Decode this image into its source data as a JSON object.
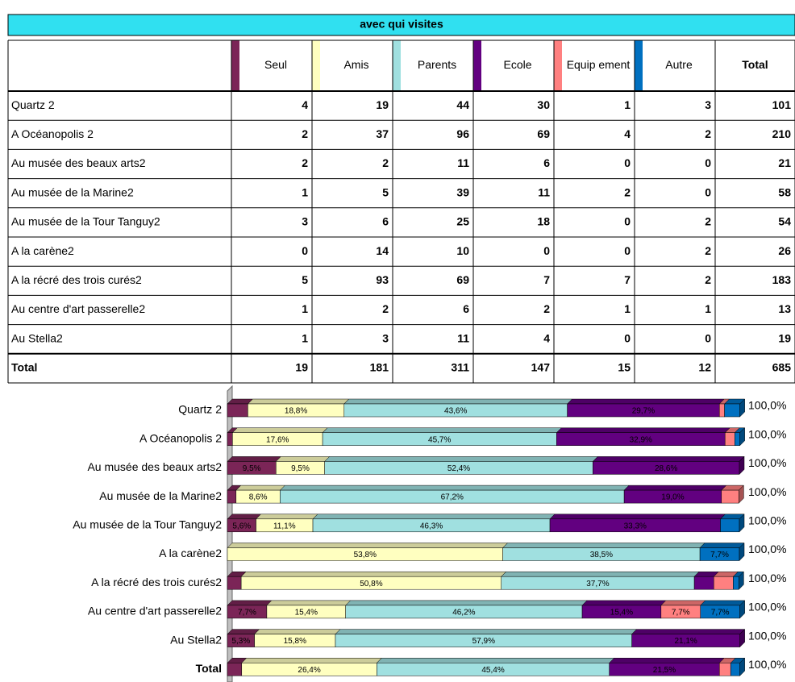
{
  "table": {
    "title": "avec qui visites",
    "columns": [
      "Seul",
      "Amis",
      "Parents",
      "Ecole",
      "Equip ement",
      "Autre",
      "Total"
    ],
    "colors": [
      "#7b2557",
      "#ffffc0",
      "#a0e0e0",
      "#620080",
      "#ff8080",
      "#0070c0"
    ],
    "rows": [
      {
        "label": "Quartz 2",
        "values": [
          4,
          19,
          44,
          30,
          1,
          3,
          101
        ]
      },
      {
        "label": "A Océanopolis 2",
        "values": [
          2,
          37,
          96,
          69,
          4,
          2,
          210
        ]
      },
      {
        "label": "Au musée des beaux arts2",
        "values": [
          2,
          2,
          11,
          6,
          0,
          0,
          21
        ]
      },
      {
        "label": "Au musée de la Marine2",
        "values": [
          1,
          5,
          39,
          11,
          2,
          0,
          58
        ]
      },
      {
        "label": "Au musée de la Tour Tanguy2",
        "values": [
          3,
          6,
          25,
          18,
          0,
          2,
          54
        ]
      },
      {
        "label": "A la carène2",
        "values": [
          0,
          14,
          10,
          0,
          0,
          2,
          26
        ]
      },
      {
        "label": "A la récré des trois curés2",
        "values": [
          5,
          93,
          69,
          7,
          7,
          2,
          183
        ]
      },
      {
        "label": "Au centre d'art passerelle2",
        "values": [
          1,
          2,
          6,
          2,
          1,
          1,
          13
        ]
      },
      {
        "label": "Au Stella2",
        "values": [
          1,
          3,
          11,
          4,
          0,
          0,
          19
        ]
      }
    ],
    "total_row": {
      "label": "Total",
      "values": [
        19,
        181,
        311,
        147,
        15,
        12,
        685
      ]
    }
  },
  "chart_data": {
    "type": "bar",
    "orientation": "horizontal",
    "stacking": "percent",
    "xlim": [
      0,
      100
    ],
    "categories": [
      "Quartz 2",
      "A Océanopolis 2",
      "Au musée des beaux arts2",
      "Au musée de la Marine2",
      "Au musée de la Tour Tanguy2",
      "A la carène2",
      "A la récré des trois curés2",
      "Au centre d'art passerelle2",
      "Au Stella2",
      "Total"
    ],
    "series": [
      {
        "color": "#7b2557",
        "values": [
          4.0,
          1.0,
          9.5,
          1.7,
          5.6,
          0,
          2.7,
          7.7,
          5.3,
          2.8
        ],
        "value_labels": [
          null,
          null,
          "9,5%",
          null,
          "5,6%",
          null,
          null,
          "7,7%",
          "5,3%",
          null
        ]
      },
      {
        "color": "#ffffc0",
        "values": [
          18.8,
          17.6,
          9.5,
          8.6,
          11.1,
          53.8,
          50.8,
          15.4,
          15.8,
          26.4
        ],
        "value_labels": [
          "18,8%",
          "17,6%",
          "9,5%",
          "8,6%",
          "11,1%",
          "53,8%",
          "50,8%",
          "15,4%",
          "15,8%",
          "26,4%"
        ]
      },
      {
        "color": "#a0e0e0",
        "values": [
          43.6,
          45.7,
          52.4,
          67.2,
          46.3,
          38.5,
          37.7,
          46.2,
          57.9,
          45.4
        ],
        "value_labels": [
          "43,6%",
          "45,7%",
          "52,4%",
          "67,2%",
          "46,3%",
          "38,5%",
          "37,7%",
          "46,2%",
          "57,9%",
          "45,4%"
        ]
      },
      {
        "color": "#620080",
        "values": [
          29.7,
          32.9,
          28.6,
          19.0,
          33.3,
          0,
          3.8,
          15.4,
          21.1,
          21.5
        ],
        "value_labels": [
          "29,7%",
          "32,9%",
          "28,6%",
          "19,0%",
          "33,3%",
          null,
          null,
          "15,4%",
          "21,1%",
          "21,5%"
        ]
      },
      {
        "color": "#ff8080",
        "values": [
          1.0,
          1.9,
          0,
          3.4,
          0,
          0,
          3.8,
          7.7,
          0,
          2.2
        ],
        "value_labels": [
          null,
          null,
          null,
          null,
          null,
          null,
          null,
          "7,7%",
          null,
          null
        ]
      },
      {
        "color": "#0070c0",
        "values": [
          3.0,
          1.0,
          0,
          0,
          3.7,
          7.7,
          1.1,
          7.7,
          0,
          1.8
        ],
        "value_labels": [
          null,
          null,
          null,
          null,
          null,
          "7,7%",
          null,
          "7,7%",
          null,
          null
        ]
      }
    ],
    "totals": [
      100,
      100,
      100,
      100,
      100,
      100,
      100,
      100,
      100,
      100
    ],
    "total_labels": [
      "100,0%",
      "100,0%",
      "100,0%",
      "100,0%",
      "100,0%",
      "100,0%",
      "100,0%",
      "100,0%",
      "100,0%",
      "100,0%"
    ]
  }
}
